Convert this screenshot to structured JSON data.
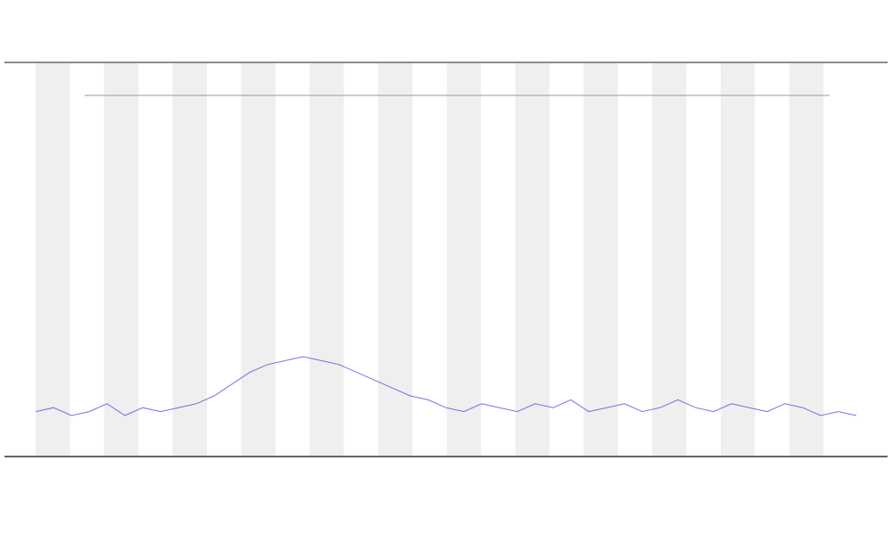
{
  "chart_data": {
    "type": "line",
    "x": [
      0,
      1,
      2,
      3,
      4,
      5,
      6,
      7,
      8,
      9,
      10,
      11,
      12,
      13,
      14,
      15,
      16,
      17,
      18,
      19,
      20,
      21,
      22,
      23,
      24,
      25,
      26,
      27,
      28,
      29,
      30,
      31,
      32,
      33,
      34,
      35,
      36,
      37,
      38,
      39,
      40,
      41,
      42,
      43,
      44,
      45,
      46
    ],
    "xlim": [
      0,
      46
    ],
    "ylim": [
      0,
      100
    ],
    "series": [
      {
        "color": "#3b3bd6",
        "values": [
          11,
          12,
          10,
          11,
          13,
          10,
          12,
          11,
          12,
          13,
          15,
          18,
          21,
          23,
          24,
          25,
          24,
          23,
          21,
          19,
          17,
          15,
          14,
          12,
          11,
          13,
          12,
          11,
          13,
          12,
          14,
          11,
          12,
          13,
          11,
          12,
          14,
          12,
          11,
          13,
          12,
          11,
          13,
          12,
          10,
          11,
          10
        ]
      }
    ]
  }
}
